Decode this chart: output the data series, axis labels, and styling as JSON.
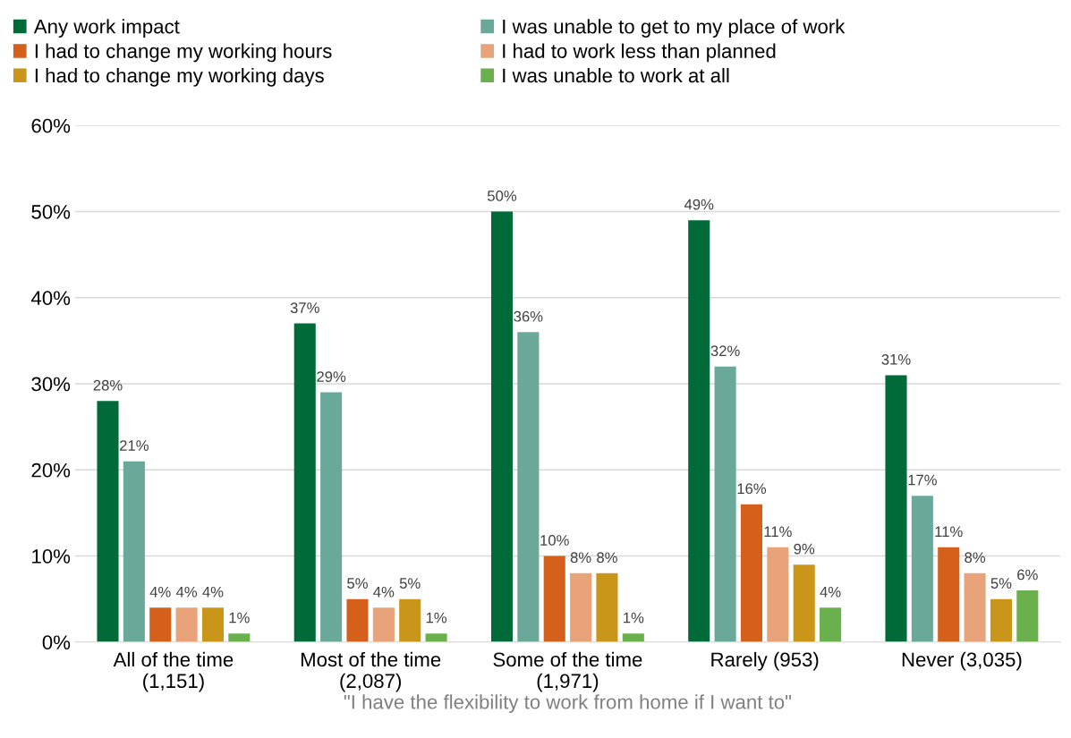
{
  "chart_data": {
    "type": "bar",
    "xlabel": "\"I have the flexibility to work from home if I want to\"",
    "categories": [
      "All of the time\n(1,151)",
      "Most of the time\n(2,087)",
      "Some of the time\n(1,971)",
      "Rarely (953)",
      "Never (3,035)"
    ],
    "series": [
      {
        "name": "Any work impact",
        "color": "#006a38",
        "values": [
          28,
          37,
          50,
          49,
          31
        ],
        "value_labels": [
          "28%",
          "37%",
          "50%",
          "49%",
          "31%"
        ]
      },
      {
        "name": "I was unable to get to my place of work",
        "color": "#6aa89a",
        "values": [
          21,
          29,
          36,
          32,
          17
        ],
        "value_labels": [
          "21%",
          "29%",
          "36%",
          "32%",
          "17%"
        ]
      },
      {
        "name": "I had to change my working hours",
        "color": "#d5601b",
        "values": [
          4,
          5,
          10,
          16,
          11
        ],
        "value_labels": [
          "4%",
          "5%",
          "10%",
          "16%",
          "11%"
        ]
      },
      {
        "name": "I had to work less than planned",
        "color": "#e9a37a",
        "values": [
          4,
          4,
          8,
          11,
          8
        ],
        "value_labels": [
          "4%",
          "4%",
          "8%",
          "11%",
          "8%"
        ]
      },
      {
        "name": "I had to change my working days",
        "color": "#c9961a",
        "values": [
          4,
          5,
          8,
          9,
          5
        ],
        "value_labels": [
          "4%",
          "5%",
          "8%",
          "9%",
          "5%"
        ]
      },
      {
        "name": "I was unable to work at all",
        "color": "#6ab04c",
        "values": [
          1,
          1,
          1,
          4,
          6
        ],
        "value_labels": [
          "1%",
          "1%",
          "1%",
          "4%",
          "6%"
        ]
      }
    ],
    "ylim": [
      0,
      60
    ],
    "yticks": [
      {
        "value": 0,
        "label": "0%"
      },
      {
        "value": 10,
        "label": "10%"
      },
      {
        "value": 20,
        "label": "20%"
      },
      {
        "value": 30,
        "label": "30%"
      },
      {
        "value": 40,
        "label": "40%"
      },
      {
        "value": 50,
        "label": "50%"
      },
      {
        "value": 60,
        "label": "60%"
      }
    ],
    "grid": "y",
    "legend": "top"
  }
}
